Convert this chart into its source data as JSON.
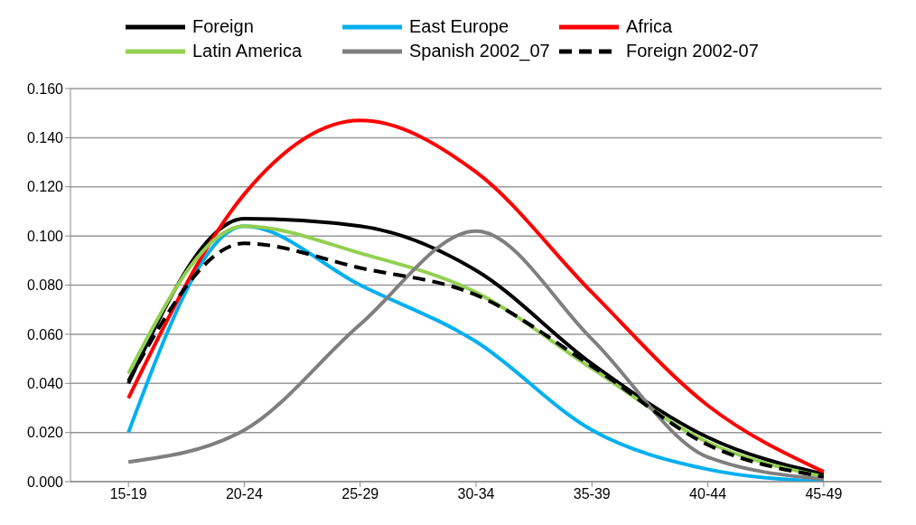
{
  "chart_data": {
    "type": "line",
    "categories": [
      "15-19",
      "20-24",
      "25-29",
      "30-34",
      "35-39",
      "40-44",
      "45-49"
    ],
    "series": [
      {
        "name": "Foreign",
        "color": "#000000",
        "values": [
          0.04,
          0.107,
          0.104,
          0.086,
          0.048,
          0.018,
          0.003
        ]
      },
      {
        "name": "East Europe",
        "color": "#00b0f0",
        "values": [
          0.02,
          0.104,
          0.08,
          0.057,
          0.021,
          0.005,
          0.0
        ]
      },
      {
        "name": "Africa",
        "color": "#ff0000",
        "values": [
          0.034,
          0.117,
          0.147,
          0.126,
          0.077,
          0.031,
          0.004
        ]
      },
      {
        "name": "Latin America",
        "color": "#92d050",
        "values": [
          0.044,
          0.104,
          0.093,
          0.077,
          0.046,
          0.016,
          0.002
        ]
      },
      {
        "name": "Spanish 2002_07",
        "color": "#7f7f7f",
        "values": [
          0.008,
          0.021,
          0.064,
          0.102,
          0.058,
          0.01,
          0.001
        ]
      },
      {
        "name": "Foreign 2002-07",
        "color": "#000000",
        "line_style": "dashed",
        "values": [
          0.041,
          0.097,
          0.087,
          0.076,
          0.047,
          0.015,
          0.002
        ]
      }
    ],
    "ylim": [
      0,
      0.16
    ],
    "yticks": [
      {
        "value": 0,
        "label": "0.000"
      },
      {
        "value": 0.02,
        "label": "0.020"
      },
      {
        "value": 0.04,
        "label": "0.040"
      },
      {
        "value": 0.06,
        "label": "0.060"
      },
      {
        "value": 0.08,
        "label": "0.080"
      },
      {
        "value": 0.1,
        "label": "0.100"
      },
      {
        "value": 0.12,
        "label": "0.120"
      },
      {
        "value": 0.14,
        "label": "0.140"
      },
      {
        "value": 0.16,
        "label": "0.160"
      }
    ],
    "grid": "y",
    "legend": "top",
    "marker": "none",
    "line_style": "solid"
  }
}
